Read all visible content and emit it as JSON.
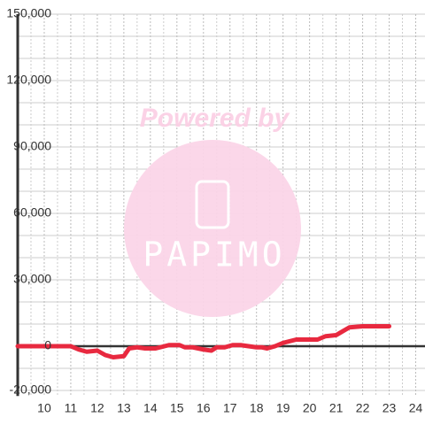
{
  "chart_data": {
    "type": "line",
    "annotations": [
      "Powered by",
      "PAPIMO"
    ],
    "x": [
      9,
      10,
      11,
      11.3,
      11.6,
      12,
      12.3,
      12.6,
      13,
      13.2,
      13.5,
      13.8,
      14.2,
      14.7,
      15.1,
      15.3,
      15.6,
      16,
      16.3,
      16.5,
      16.8,
      17.1,
      17.4,
      17.7,
      18,
      18.2,
      18.4,
      18.7,
      19,
      19.5,
      20,
      20.3,
      20.6,
      21,
      21.5,
      22,
      23
    ],
    "series": [
      {
        "name": "",
        "color": "#e8293f",
        "values": [
          0,
          0,
          0,
          -1500,
          -2500,
          -2000,
          -4000,
          -5000,
          -4500,
          -1000,
          -500,
          -1000,
          -1000,
          500,
          500,
          -500,
          -500,
          -1500,
          -2000,
          -500,
          -500,
          500,
          500,
          0,
          -500,
          -500,
          -1000,
          0,
          1500,
          3000,
          3000,
          3000,
          4500,
          5000,
          8500,
          9000,
          9000
        ]
      }
    ],
    "xlim": [
      9,
      24.35
    ],
    "xticks": [
      10,
      11,
      12,
      13,
      14,
      15,
      16,
      17,
      18,
      19,
      20,
      21,
      22,
      23,
      24
    ],
    "x_minor_ticks": [
      9.5,
      10.5,
      11.5,
      12.5,
      13.5,
      14.5,
      15.5,
      16.5,
      17.5,
      18.5,
      19.5,
      20.5,
      21.5,
      22.5,
      23.5
    ],
    "ylim": [
      -22500,
      150000
    ],
    "yticks": [
      {
        "value": -20000,
        "label": "-20,000"
      },
      0,
      {
        "value": 30000,
        "label": "30,000"
      },
      {
        "value": 60000,
        "label": "60,000"
      },
      {
        "value": 90000,
        "label": "90,000"
      },
      {
        "value": 120000,
        "label": "120,000"
      },
      {
        "value": 150000,
        "label": "150,000"
      }
    ],
    "y_minor_ticks": [
      -10000,
      10000,
      20000,
      40000,
      50000,
      70000,
      80000,
      100000,
      110000,
      130000,
      140000
    ],
    "grid": true
  }
}
